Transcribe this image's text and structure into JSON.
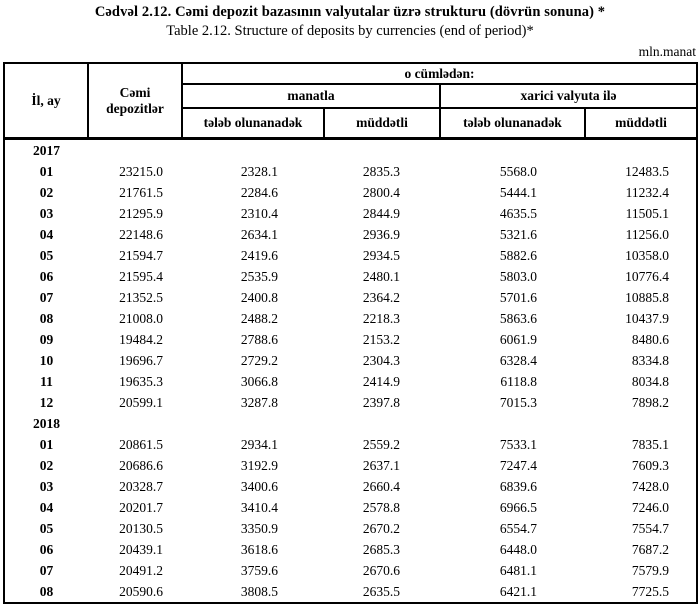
{
  "title_az": "Cədvəl  2.12. Cəmi depozit bazasının valyutalar üzrə strukturu (dövrün sonuna) *",
  "title_en": "Table  2.12. Structure of deposits by currencies (end of period)*",
  "unit": "mln.manat",
  "table": {
    "col_year_month": "İl, ay",
    "col_total": "Cəmi depozitlər",
    "col_including": "o cümlədən:",
    "col_manat": "manatla",
    "col_foreign": "xarici valyuta ilə",
    "col_demand": "tələb olunanadək",
    "col_time": "müddətli",
    "rows": [
      {
        "label": "2017",
        "year": true,
        "values": [
          "",
          "",
          "",
          ""
        ]
      },
      {
        "label": "01",
        "year": false,
        "total": "23215.0",
        "values": [
          "2328.1",
          "2835.3",
          "5568.0",
          "12483.5"
        ]
      },
      {
        "label": "02",
        "year": false,
        "total": "21761.5",
        "values": [
          "2284.6",
          "2800.4",
          "5444.1",
          "11232.4"
        ]
      },
      {
        "label": "03",
        "year": false,
        "total": "21295.9",
        "values": [
          "2310.4",
          "2844.9",
          "4635.5",
          "11505.1"
        ]
      },
      {
        "label": "04",
        "year": false,
        "total": "22148.6",
        "values": [
          "2634.1",
          "2936.9",
          "5321.6",
          "11256.0"
        ]
      },
      {
        "label": "05",
        "year": false,
        "total": "21594.7",
        "values": [
          "2419.6",
          "2934.5",
          "5882.6",
          "10358.0"
        ]
      },
      {
        "label": "06",
        "year": false,
        "total": "21595.4",
        "values": [
          "2535.9",
          "2480.1",
          "5803.0",
          "10776.4"
        ]
      },
      {
        "label": "07",
        "year": false,
        "total": "21352.5",
        "values": [
          "2400.8",
          "2364.2",
          "5701.6",
          "10885.8"
        ]
      },
      {
        "label": "08",
        "year": false,
        "total": "21008.0",
        "values": [
          "2488.2",
          "2218.3",
          "5863.6",
          "10437.9"
        ]
      },
      {
        "label": "09",
        "year": false,
        "total": "19484.2",
        "values": [
          "2788.6",
          "2153.2",
          "6061.9",
          "8480.6"
        ]
      },
      {
        "label": "10",
        "year": false,
        "total": "19696.7",
        "values": [
          "2729.2",
          "2304.3",
          "6328.4",
          "8334.8"
        ]
      },
      {
        "label": "11",
        "year": false,
        "total": "19635.3",
        "values": [
          "3066.8",
          "2414.9",
          "6118.8",
          "8034.8"
        ]
      },
      {
        "label": "12",
        "year": false,
        "total": "20599.1",
        "values": [
          "3287.8",
          "2397.8",
          "7015.3",
          "7898.2"
        ]
      },
      {
        "label": "2018",
        "year": true,
        "values": [
          "",
          "",
          "",
          ""
        ]
      },
      {
        "label": "01",
        "year": false,
        "total": "20861.5",
        "values": [
          "2934.1",
          "2559.2",
          "7533.1",
          "7835.1"
        ]
      },
      {
        "label": "02",
        "year": false,
        "total": "20686.6",
        "values": [
          "3192.9",
          "2637.1",
          "7247.4",
          "7609.3"
        ]
      },
      {
        "label": "03",
        "year": false,
        "total": "20328.7",
        "values": [
          "3400.6",
          "2660.4",
          "6839.6",
          "7428.0"
        ]
      },
      {
        "label": "04",
        "year": false,
        "total": "20201.7",
        "values": [
          "3410.4",
          "2578.8",
          "6966.5",
          "7246.0"
        ]
      },
      {
        "label": "05",
        "year": false,
        "total": "20130.5",
        "values": [
          "3350.9",
          "2670.2",
          "6554.7",
          "7554.7"
        ]
      },
      {
        "label": "06",
        "year": false,
        "total": "20439.1",
        "values": [
          "3618.6",
          "2685.3",
          "6448.0",
          "7687.2"
        ]
      },
      {
        "label": "07",
        "year": false,
        "total": "20491.2",
        "values": [
          "3759.6",
          "2670.6",
          "6481.1",
          "7579.9"
        ]
      },
      {
        "label": "08",
        "year": false,
        "total": "20590.6",
        "values": [
          "3808.5",
          "2635.5",
          "6421.1",
          "7725.5"
        ]
      }
    ]
  }
}
